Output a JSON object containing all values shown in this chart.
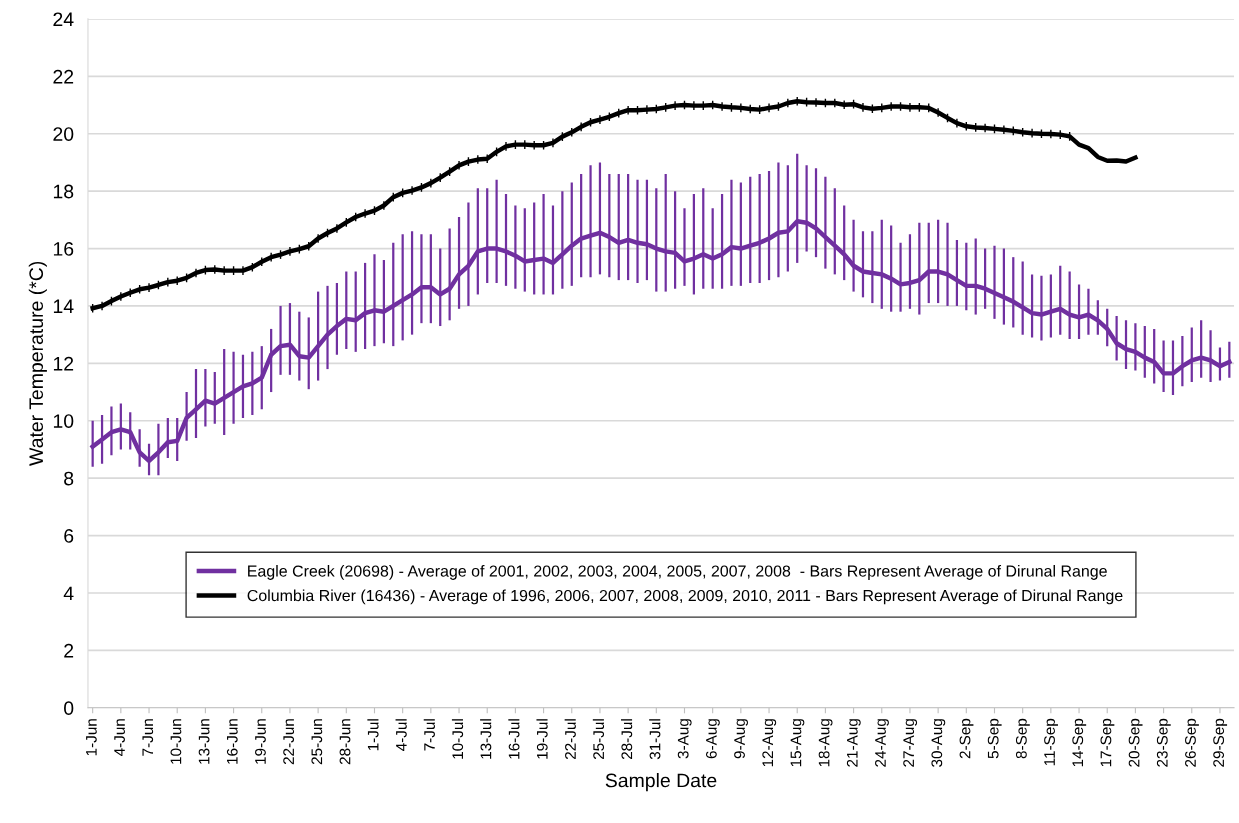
{
  "chart_data": {
    "type": "line",
    "xlabel": "Sample Date",
    "ylabel": "Water Temperature (*C)",
    "categories": [
      "1-Jun",
      null,
      null,
      "4-Jun",
      null,
      null,
      "7-Jun",
      null,
      null,
      "10-Jun",
      null,
      null,
      "13-Jun",
      null,
      null,
      "16-Jun",
      null,
      null,
      "19-Jun",
      null,
      null,
      "22-Jun",
      null,
      null,
      "25-Jun",
      null,
      null,
      "28-Jun",
      null,
      null,
      "1-Jul",
      null,
      null,
      "4-Jul",
      null,
      null,
      "7-Jul",
      null,
      null,
      "10-Jul",
      null,
      null,
      "13-Jul",
      null,
      null,
      "16-Jul",
      null,
      null,
      "19-Jul",
      null,
      null,
      "22-Jul",
      null,
      null,
      "25-Jul",
      null,
      null,
      "28-Jul",
      null,
      null,
      "31-Jul",
      null,
      null,
      "3-Aug",
      null,
      null,
      "6-Aug",
      null,
      null,
      "9-Aug",
      null,
      null,
      "12-Aug",
      null,
      null,
      "15-Aug",
      null,
      null,
      "18-Aug",
      null,
      null,
      "21-Aug",
      null,
      null,
      "24-Aug",
      null,
      null,
      "27-Aug",
      null,
      null,
      "30-Aug",
      null,
      null,
      "2-Sep",
      null,
      null,
      "5-Sep",
      null,
      null,
      "8-Sep",
      null,
      null,
      "11-Sep",
      null,
      null,
      "14-Sep",
      null,
      null,
      "17-Sep",
      null,
      null,
      "20-Sep",
      null,
      null,
      "23-Sep",
      null,
      null,
      "26-Sep",
      null,
      null,
      "29-Sep",
      null
    ],
    "ylim": [
      0,
      24
    ],
    "yticks": [
      0,
      2,
      4,
      6,
      8,
      10,
      12,
      14,
      16,
      18,
      20,
      22,
      24
    ],
    "grid": "y",
    "legend": "bottom",
    "marker": "none",
    "line_style": "solid",
    "series": [
      {
        "name": "Eagle Creek (20698) - Average of 2001, 2002, 2003, 2004, 2005, 2007, 2008  - Bars Represent Average of Dirunal Range",
        "color": "#7030a0",
        "values": [
          9.1,
          9.35,
          9.6,
          9.7,
          9.6,
          8.9,
          8.6,
          8.9,
          9.25,
          9.3,
          10.1,
          10.4,
          10.7,
          10.6,
          10.8,
          11.0,
          11.2,
          11.3,
          11.5,
          12.3,
          12.6,
          12.65,
          12.25,
          12.2,
          12.6,
          13.0,
          13.3,
          13.55,
          13.5,
          13.75,
          13.85,
          13.8,
          14.0,
          14.2,
          14.4,
          14.65,
          14.65,
          14.4,
          14.6,
          15.1,
          15.4,
          15.9,
          16.0,
          16.0,
          15.9,
          15.75,
          15.55,
          15.6,
          15.65,
          15.5,
          15.8,
          16.1,
          16.35,
          16.45,
          16.55,
          16.4,
          16.2,
          16.3,
          16.2,
          16.15,
          16.0,
          15.9,
          15.85,
          15.55,
          15.65,
          15.8,
          15.65,
          15.8,
          16.05,
          16.0,
          16.1,
          16.2,
          16.35,
          16.55,
          16.6,
          16.95,
          16.9,
          16.7,
          16.4,
          16.1,
          15.8,
          15.4,
          15.2,
          15.15,
          15.1,
          14.95,
          14.75,
          14.8,
          14.9,
          15.2,
          15.2,
          15.1,
          14.9,
          14.7,
          14.7,
          14.6,
          14.45,
          14.3,
          14.15,
          13.95,
          13.75,
          13.7,
          13.8,
          13.9,
          13.7,
          13.6,
          13.7,
          13.5,
          13.2,
          12.7,
          12.5,
          12.4,
          12.2,
          12.05,
          11.65,
          11.65,
          11.9,
          12.1,
          12.2,
          12.1,
          11.9,
          12.05
        ],
        "errors": [
          [
            8.4,
            10.0
          ],
          [
            8.5,
            10.2
          ],
          [
            8.8,
            10.5
          ],
          [
            9.0,
            10.6
          ],
          [
            9.0,
            10.3
          ],
          [
            8.4,
            9.7
          ],
          [
            8.1,
            9.2
          ],
          [
            8.1,
            9.9
          ],
          [
            8.7,
            10.1
          ],
          [
            8.6,
            10.1
          ],
          [
            9.3,
            11.0
          ],
          [
            9.4,
            11.8
          ],
          [
            9.8,
            11.8
          ],
          [
            9.9,
            11.7
          ],
          [
            9.5,
            12.5
          ],
          [
            9.9,
            12.4
          ],
          [
            10.1,
            12.3
          ],
          [
            10.2,
            12.4
          ],
          [
            10.4,
            12.6
          ],
          [
            11.0,
            13.2
          ],
          [
            11.6,
            14.0
          ],
          [
            11.6,
            14.1
          ],
          [
            11.4,
            13.8
          ],
          [
            11.1,
            13.6
          ],
          [
            11.4,
            14.5
          ],
          [
            11.8,
            14.7
          ],
          [
            12.3,
            14.8
          ],
          [
            12.5,
            15.2
          ],
          [
            12.4,
            15.2
          ],
          [
            12.5,
            15.5
          ],
          [
            12.6,
            15.8
          ],
          [
            12.7,
            15.6
          ],
          [
            12.6,
            16.2
          ],
          [
            12.8,
            16.5
          ],
          [
            13.0,
            16.6
          ],
          [
            13.4,
            16.5
          ],
          [
            13.4,
            16.5
          ],
          [
            13.3,
            16.0
          ],
          [
            13.5,
            16.7
          ],
          [
            13.9,
            17.1
          ],
          [
            14.0,
            17.6
          ],
          [
            14.4,
            18.1
          ],
          [
            14.8,
            18.1
          ],
          [
            14.8,
            18.4
          ],
          [
            14.7,
            17.9
          ],
          [
            14.6,
            17.5
          ],
          [
            14.5,
            17.4
          ],
          [
            14.4,
            17.6
          ],
          [
            14.4,
            17.9
          ],
          [
            14.4,
            17.5
          ],
          [
            14.6,
            18.0
          ],
          [
            14.7,
            18.3
          ],
          [
            15.0,
            18.6
          ],
          [
            15.0,
            18.9
          ],
          [
            15.1,
            19.0
          ],
          [
            15.0,
            18.6
          ],
          [
            14.9,
            18.6
          ],
          [
            14.9,
            18.6
          ],
          [
            14.8,
            18.4
          ],
          [
            14.9,
            18.4
          ],
          [
            14.5,
            18.1
          ],
          [
            14.5,
            18.6
          ],
          [
            14.6,
            18.0
          ],
          [
            14.7,
            17.4
          ],
          [
            14.4,
            17.9
          ],
          [
            14.6,
            18.1
          ],
          [
            14.6,
            17.4
          ],
          [
            14.6,
            17.9
          ],
          [
            14.7,
            18.4
          ],
          [
            14.7,
            18.3
          ],
          [
            14.8,
            18.5
          ],
          [
            14.8,
            18.6
          ],
          [
            14.9,
            18.7
          ],
          [
            15.0,
            19.0
          ],
          [
            15.2,
            18.9
          ],
          [
            15.5,
            19.3
          ],
          [
            15.9,
            18.9
          ],
          [
            15.7,
            18.8
          ],
          [
            15.3,
            18.5
          ],
          [
            15.1,
            18.1
          ],
          [
            14.9,
            17.5
          ],
          [
            14.5,
            17.0
          ],
          [
            14.3,
            16.6
          ],
          [
            14.1,
            16.6
          ],
          [
            13.9,
            17.0
          ],
          [
            13.8,
            16.8
          ],
          [
            13.8,
            16.2
          ],
          [
            13.9,
            16.5
          ],
          [
            13.7,
            16.9
          ],
          [
            14.1,
            16.9
          ],
          [
            14.1,
            17.0
          ],
          [
            14.0,
            16.9
          ],
          [
            14.0,
            16.3
          ],
          [
            13.85,
            16.2
          ],
          [
            13.7,
            16.35
          ],
          [
            13.9,
            16.0
          ],
          [
            13.55,
            16.1
          ],
          [
            13.35,
            16.0
          ],
          [
            13.25,
            15.7
          ],
          [
            13.0,
            15.55
          ],
          [
            12.9,
            15.1
          ],
          [
            12.8,
            15.05
          ],
          [
            12.9,
            15.1
          ],
          [
            13.0,
            15.4
          ],
          [
            12.85,
            15.2
          ],
          [
            12.85,
            14.75
          ],
          [
            13.0,
            14.6
          ],
          [
            13.0,
            14.2
          ],
          [
            12.6,
            13.9
          ],
          [
            12.1,
            13.65
          ],
          [
            11.8,
            13.5
          ],
          [
            11.75,
            13.4
          ],
          [
            11.5,
            13.3
          ],
          [
            11.3,
            13.2
          ],
          [
            11.0,
            12.8
          ],
          [
            10.9,
            12.8
          ],
          [
            11.2,
            12.95
          ],
          [
            11.35,
            13.25
          ],
          [
            11.5,
            13.5
          ],
          [
            11.35,
            13.15
          ],
          [
            11.4,
            12.55
          ],
          [
            11.5,
            12.75
          ]
        ]
      },
      {
        "name": "Columbia River (16436) - Average of 1996, 2006, 2007, 2008, 2009, 2010, 2011 - Bars Represent Average of Dirunal Range",
        "color": "#000000",
        "values": [
          13.92,
          14.0,
          14.17,
          14.33,
          14.46,
          14.58,
          14.64,
          14.73,
          14.83,
          14.88,
          14.98,
          15.15,
          15.25,
          15.27,
          15.23,
          15.23,
          15.23,
          15.35,
          15.54,
          15.7,
          15.79,
          15.9,
          15.98,
          16.08,
          16.35,
          16.54,
          16.7,
          16.91,
          17.1,
          17.22,
          17.32,
          17.5,
          17.79,
          17.94,
          18.02,
          18.13,
          18.28,
          18.47,
          18.68,
          18.9,
          19.03,
          19.1,
          19.13,
          19.37,
          19.56,
          19.62,
          19.62,
          19.6,
          19.6,
          19.68,
          19.9,
          20.05,
          20.24,
          20.4,
          20.49,
          20.59,
          20.72,
          20.82,
          20.82,
          20.84,
          20.86,
          20.92,
          20.98,
          21.0,
          20.98,
          20.98,
          21.0,
          20.95,
          20.92,
          20.9,
          20.86,
          20.84,
          20.9,
          20.95,
          21.07,
          21.13,
          21.1,
          21.09,
          21.07,
          21.07,
          21.01,
          21.03,
          20.92,
          20.87,
          20.9,
          20.95,
          20.95,
          20.92,
          20.92,
          20.9,
          20.74,
          20.55,
          20.37,
          20.26,
          20.22,
          20.2,
          20.17,
          20.14,
          20.1,
          20.05,
          20.02,
          20.0,
          19.99,
          19.97,
          19.91,
          19.62,
          19.5,
          19.19,
          19.06,
          19.07,
          19.03,
          19.17,
          null,
          null,
          null,
          null,
          null,
          null,
          null,
          null,
          null,
          null
        ],
        "errors": [
          0.15,
          0.15,
          0.15,
          0.15,
          0.15,
          0.15,
          0.15,
          0.15,
          0.15,
          0.15,
          0.15,
          0.15,
          0.15,
          0.15,
          0.15,
          0.15,
          0.15,
          0.15,
          0.15,
          0.15,
          0.15,
          0.15,
          0.15,
          0.15,
          0.15,
          0.15,
          0.15,
          0.15,
          0.15,
          0.15,
          0.15,
          0.15,
          0.15,
          0.15,
          0.15,
          0.15,
          0.15,
          0.15,
          0.15,
          0.15,
          0.15,
          0.15,
          0.15,
          0.15,
          0.15,
          0.15,
          0.15,
          0.15,
          0.15,
          0.15,
          0.15,
          0.15,
          0.15,
          0.15,
          0.15,
          0.15,
          0.15,
          0.15,
          0.15,
          0.15,
          0.15,
          0.15,
          0.15,
          0.15,
          0.15,
          0.15,
          0.15,
          0.15,
          0.15,
          0.15,
          0.15,
          0.15,
          0.15,
          0.15,
          0.15,
          0.15,
          0.15,
          0.15,
          0.15,
          0.15,
          0.15,
          0.15,
          0.15,
          0.15,
          0.15,
          0.15,
          0.15,
          0.15,
          0.15,
          0.15,
          0.15,
          0.15,
          0.15,
          0.15,
          0.15,
          0.15,
          0.15,
          0.15,
          0.15,
          0.15,
          0.15,
          0.15,
          0.15,
          0.15,
          0.15,
          null,
          null,
          null,
          null,
          null,
          null,
          null,
          null,
          null,
          null,
          null,
          null,
          null,
          null,
          null,
          null,
          null
        ]
      }
    ]
  }
}
